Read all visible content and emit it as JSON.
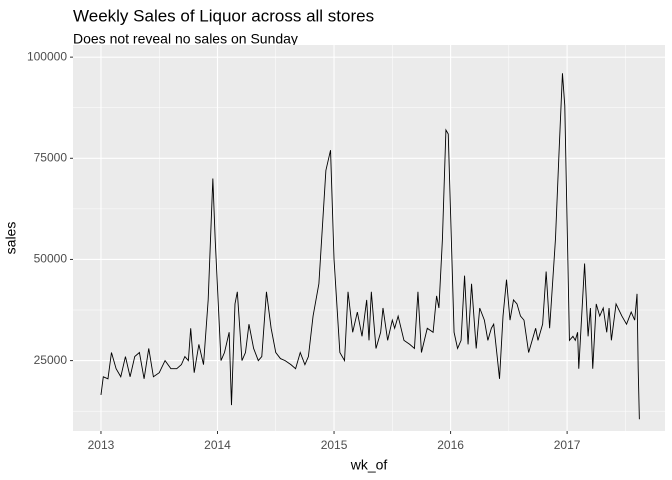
{
  "chart_data": {
    "type": "line",
    "title": "Weekly Sales of Liquor across all stores",
    "subtitle": "Does not reveal no sales on Sunday",
    "x_label": "wk_of",
    "y_label": "sales",
    "x": [
      2013.0,
      2013.02,
      2013.06,
      2013.09,
      2013.13,
      2013.17,
      2013.21,
      2013.25,
      2013.29,
      2013.33,
      2013.37,
      2013.41,
      2013.45,
      2013.5,
      2013.55,
      2013.6,
      2013.65,
      2013.69,
      2013.72,
      2013.75,
      2013.77,
      2013.8,
      2013.84,
      2013.88,
      2013.92,
      2013.96,
      2013.98,
      2014.03,
      2014.06,
      2014.1,
      2014.12,
      2014.15,
      2014.17,
      2014.21,
      2014.24,
      2014.27,
      2014.31,
      2014.35,
      2014.38,
      2014.42,
      2014.46,
      2014.5,
      2014.54,
      2014.58,
      2014.63,
      2014.67,
      2014.71,
      2014.75,
      2014.78,
      2014.82,
      2014.87,
      2014.93,
      2014.97,
      2015.0,
      2015.05,
      2015.09,
      2015.12,
      2015.16,
      2015.2,
      2015.24,
      2015.28,
      2015.3,
      2015.32,
      2015.36,
      2015.4,
      2015.42,
      2015.46,
      2015.5,
      2015.52,
      2015.55,
      2015.6,
      2015.65,
      2015.69,
      2015.72,
      2015.75,
      2015.8,
      2015.85,
      2015.88,
      2015.9,
      2015.93,
      2015.96,
      2015.98,
      2016.03,
      2016.06,
      2016.09,
      2016.12,
      2016.15,
      2016.18,
      2016.22,
      2016.25,
      2016.29,
      2016.32,
      2016.35,
      2016.37,
      2016.4,
      2016.42,
      2016.45,
      2016.48,
      2016.51,
      2016.54,
      2016.57,
      2016.6,
      2016.63,
      2016.67,
      2016.7,
      2016.73,
      2016.75,
      2016.79,
      2016.82,
      2016.85,
      2016.9,
      2016.93,
      2016.96,
      2016.98,
      2017.02,
      2017.05,
      2017.07,
      2017.09,
      2017.1,
      2017.15,
      2017.18,
      2017.2,
      2017.22,
      2017.25,
      2017.28,
      2017.31,
      2017.34,
      2017.36,
      2017.38,
      2017.42,
      2017.47,
      2017.51,
      2017.55,
      2017.58,
      2017.6,
      2017.61,
      2017.62
    ],
    "values": [
      16500,
      21000,
      20500,
      27000,
      23000,
      21000,
      26000,
      21000,
      26000,
      27000,
      20500,
      28000,
      21000,
      22000,
      25000,
      23000,
      23000,
      24000,
      26000,
      25000,
      33000,
      22000,
      29000,
      24000,
      40000,
      70000,
      55000,
      25000,
      27000,
      32000,
      14000,
      39000,
      42000,
      25000,
      27000,
      34000,
      28000,
      25000,
      26000,
      42000,
      33000,
      27000,
      25500,
      25000,
      24000,
      23000,
      27000,
      24000,
      26000,
      36000,
      44000,
      72000,
      77000,
      50000,
      27000,
      25000,
      42000,
      32000,
      37000,
      31000,
      40000,
      30000,
      42000,
      28000,
      32000,
      38000,
      30000,
      35000,
      33000,
      36000,
      30000,
      29000,
      28000,
      42000,
      27000,
      33000,
      32000,
      41000,
      38000,
      55000,
      82000,
      81000,
      32000,
      28000,
      30000,
      46000,
      29000,
      44000,
      28000,
      38000,
      35000,
      30000,
      33000,
      34000,
      26000,
      20500,
      36000,
      45000,
      35000,
      40000,
      39000,
      36000,
      35000,
      27000,
      30000,
      33000,
      30000,
      34000,
      47000,
      33000,
      55000,
      76000,
      96000,
      88000,
      30000,
      31000,
      30000,
      32000,
      23000,
      49000,
      31000,
      38000,
      23000,
      39000,
      36000,
      38000,
      32000,
      38000,
      30000,
      39000,
      36000,
      34000,
      37000,
      35000,
      41500,
      23000,
      10500
    ],
    "color": "#000000",
    "xlim": [
      2012.76,
      2017.84
    ],
    "xticks": [
      2013,
      2014,
      2015,
      2016,
      2017
    ],
    "ylim": [
      7600,
      103000
    ],
    "yticks": [
      25000,
      50000,
      75000,
      100000
    ],
    "grid": true
  }
}
